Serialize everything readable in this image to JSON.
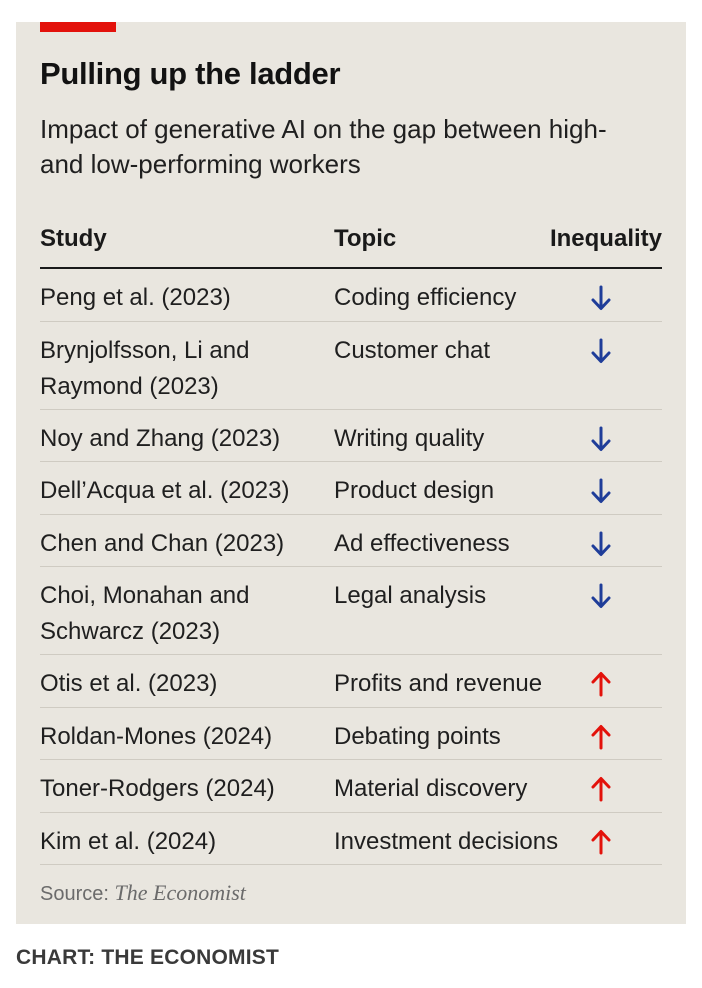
{
  "title": "Pulling up the ladder",
  "subtitle": "Impact of generative AI on the gap between high- and low-performing workers",
  "chart_data": {
    "type": "table",
    "columns": [
      "Study",
      "Topic",
      "Inequality"
    ],
    "rows": [
      {
        "study": "Peng et al. (2023)",
        "topic": "Coding efficiency",
        "inequality": "down"
      },
      {
        "study": "Brynjolfsson, Li and Raymond (2023)",
        "topic": "Customer chat",
        "inequality": "down"
      },
      {
        "study": "Noy and Zhang (2023)",
        "topic": "Writing quality",
        "inequality": "down"
      },
      {
        "study": "Dell’Acqua et al. (2023)",
        "topic": "Product design",
        "inequality": "down"
      },
      {
        "study": "Chen and Chan (2023)",
        "topic": "Ad effectiveness",
        "inequality": "down"
      },
      {
        "study": "Choi, Monahan and Schwarcz (2023)",
        "topic": "Legal analysis",
        "inequality": "down"
      },
      {
        "study": "Otis et al. (2023)",
        "topic": "Profits and revenue",
        "inequality": "up"
      },
      {
        "study": "Roldan-Mones (2024)",
        "topic": "Debating points",
        "inequality": "up"
      },
      {
        "study": "Toner-Rodgers (2024)",
        "topic": "Material discovery",
        "inequality": "up"
      },
      {
        "study": "Kim et al. (2024)",
        "topic": "Investment decisions",
        "inequality": "up"
      }
    ]
  },
  "source_label": "Source:",
  "source_name": "The Economist",
  "credit": "CHART: THE ECONOMIST",
  "colors": {
    "brand_red": "#e3120b",
    "arrow_down": "#1f3d99",
    "arrow_up": "#e3120b",
    "background": "#e9e6df"
  }
}
